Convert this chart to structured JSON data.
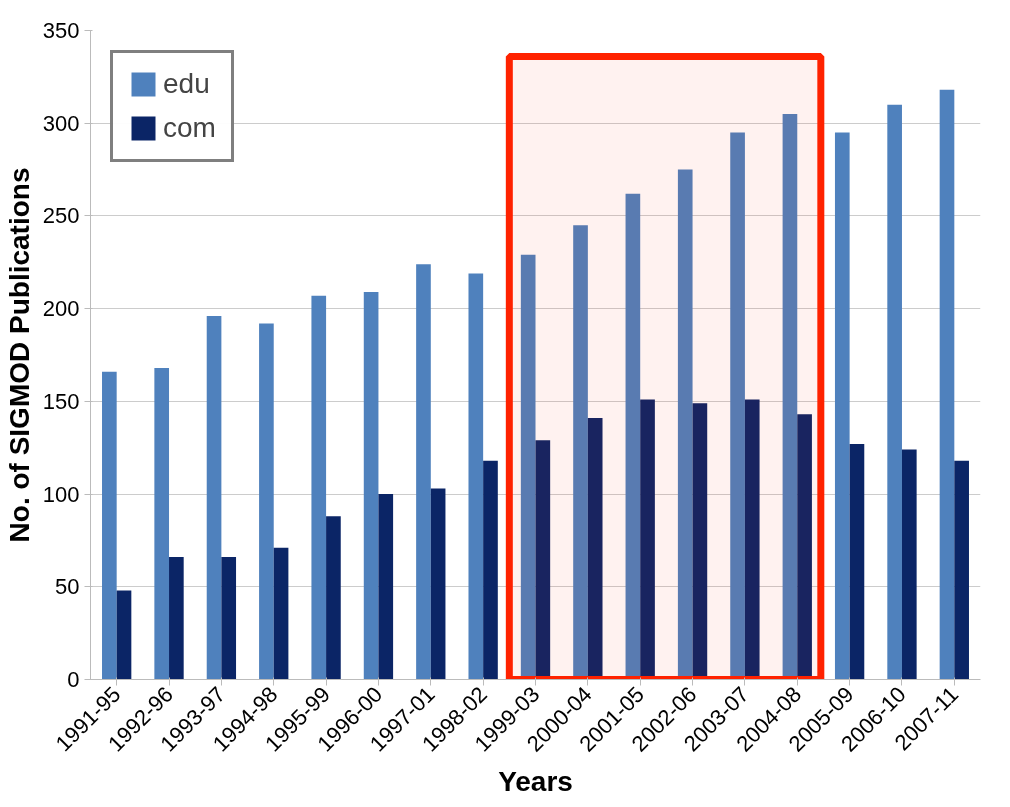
{
  "chart_data": {
    "type": "bar",
    "xlabel": "Years",
    "ylabel": "No. of SIGMOD Publications",
    "categories": [
      "1991-95",
      "1992-96",
      "1993-97",
      "1994-98",
      "1995-99",
      "1996-00",
      "1997-01",
      "1998-02",
      "1999-03",
      "2000-04",
      "2001-05",
      "2002-06",
      "2003-07",
      "2004-08",
      "2005-09",
      "2006-10",
      "2007-11"
    ],
    "series": [
      {
        "name": "edu",
        "color": "#4f81bd",
        "values": [
          166,
          168,
          196,
          192,
          207,
          209,
          224,
          219,
          229,
          245,
          262,
          275,
          295,
          305,
          295,
          310,
          318
        ]
      },
      {
        "name": "com",
        "color": "#0b2566",
        "values": [
          48,
          66,
          66,
          71,
          88,
          100,
          103,
          118,
          129,
          141,
          151,
          149,
          151,
          143,
          127,
          124,
          118
        ]
      }
    ],
    "ylim": [
      0,
      350
    ],
    "yticks": [
      0,
      50,
      100,
      150,
      200,
      250,
      300,
      350
    ],
    "grid": "y",
    "legend": "top left",
    "bands": [
      {
        "axis": "x",
        "from": "1999-03",
        "to": "2004-08",
        "color": "#ff2200"
      }
    ]
  }
}
